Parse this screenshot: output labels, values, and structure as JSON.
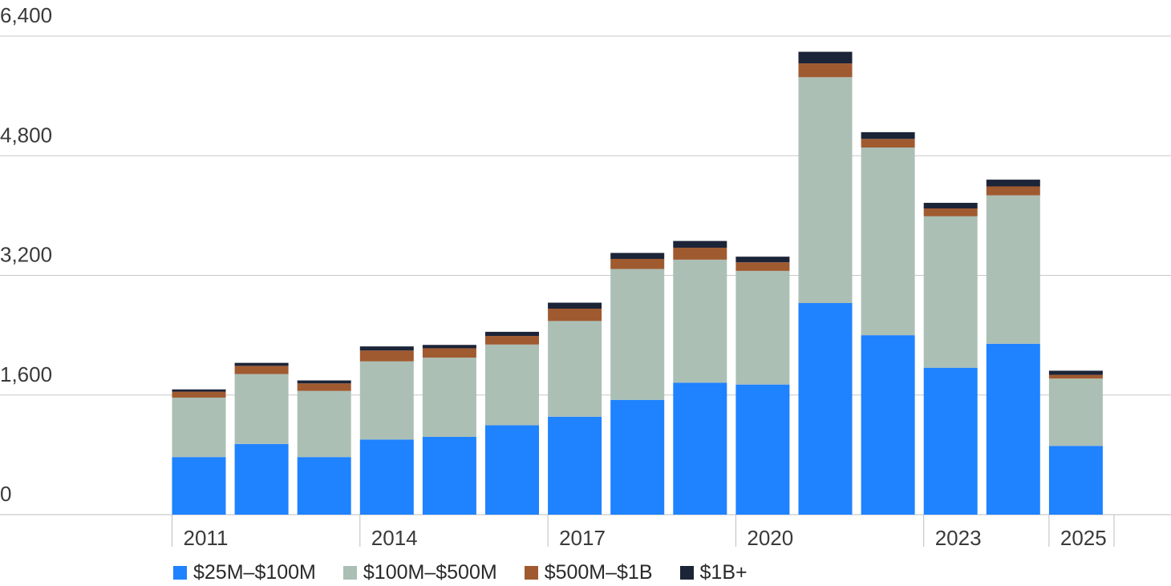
{
  "chart_data": {
    "type": "bar",
    "stacked": true,
    "title": "",
    "xlabel": "",
    "ylabel": "",
    "ylim": [
      0,
      6400
    ],
    "y_ticks": [
      0,
      1600,
      3200,
      4800,
      6400
    ],
    "y_tick_labels": [
      "0",
      "1,600",
      "3,200",
      "4,800",
      "6,400"
    ],
    "categories": [
      "2011",
      "2012",
      "2013",
      "2014",
      "2015",
      "2016",
      "2017",
      "2018",
      "2019",
      "2020",
      "2021",
      "2022",
      "2023",
      "2024",
      "2025"
    ],
    "x_tick_labels": [
      {
        "index": 0,
        "label": "2011"
      },
      {
        "index": 3,
        "label": "2014"
      },
      {
        "index": 6,
        "label": "2017"
      },
      {
        "index": 9,
        "label": "2020"
      },
      {
        "index": 12,
        "label": "2023"
      },
      {
        "index": 14,
        "label": "2025"
      }
    ],
    "series": [
      {
        "name": "$25M–$100M",
        "color": "#1f82ff",
        "values": [
          770,
          945,
          770,
          1005,
          1040,
          1195,
          1310,
          1535,
          1765,
          1740,
          2830,
          2400,
          1965,
          2285,
          920
        ]
      },
      {
        "name": "$100M–$500M",
        "color": "#abbfb5",
        "values": [
          795,
          935,
          885,
          1045,
          1060,
          1080,
          1280,
          1750,
          1645,
          1520,
          3020,
          2510,
          2025,
          1985,
          900
        ]
      },
      {
        "name": "$500M–$1B",
        "color": "#a05a30",
        "values": [
          80,
          110,
          100,
          145,
          125,
          115,
          165,
          135,
          160,
          115,
          185,
          115,
          105,
          120,
          50
        ]
      },
      {
        "name": "$1B+",
        "color": "#1c2438",
        "values": [
          30,
          40,
          40,
          55,
          45,
          55,
          80,
          80,
          90,
          75,
          155,
          90,
          75,
          90,
          55
        ]
      }
    ],
    "grid": true,
    "legend_position": "bottom-left"
  },
  "legend": {
    "items": [
      {
        "label": "$25M–$100M",
        "color": "#1f82ff"
      },
      {
        "label": "$100M–$500M",
        "color": "#abbfb5"
      },
      {
        "label": "$500M–$1B",
        "color": "#a05a30"
      },
      {
        "label": "$1B+",
        "color": "#1c2438"
      }
    ]
  }
}
